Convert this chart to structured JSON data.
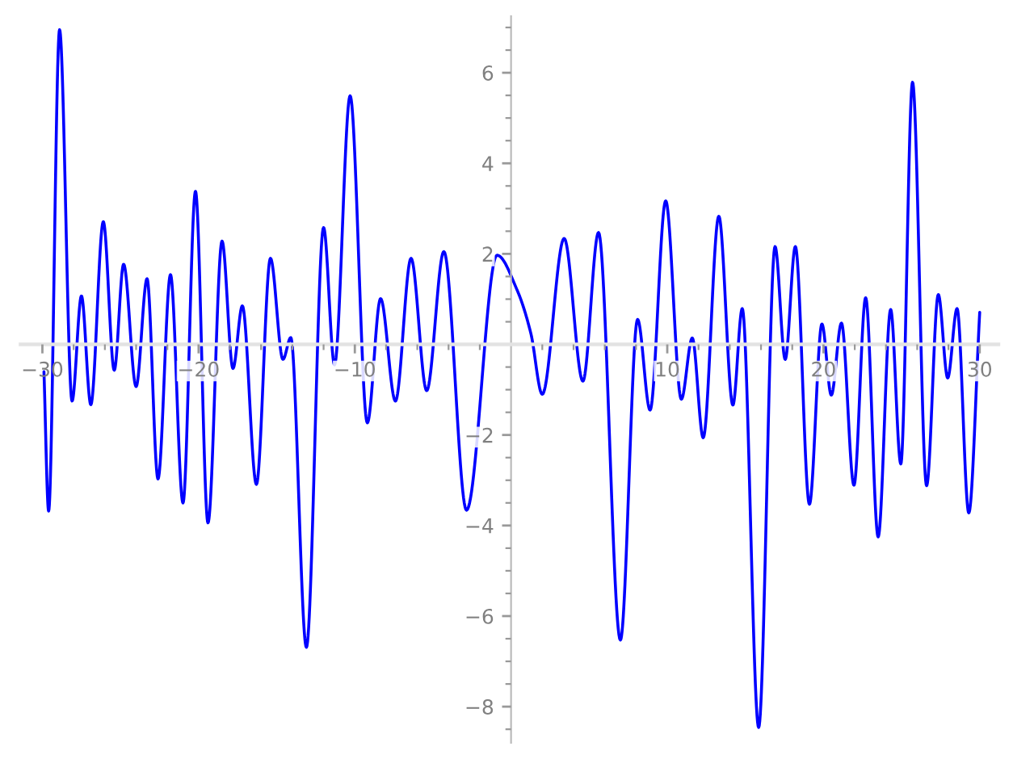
{
  "chart_data": {
    "type": "line",
    "x": [
      -29.9,
      -29.6,
      -28.9,
      -28.1,
      -27.5,
      -26.9,
      -26.1,
      -25.4,
      -24.8,
      -24.0,
      -23.3,
      -22.6,
      -21.8,
      -21.0,
      -20.2,
      -19.4,
      -18.5,
      -17.8,
      -17.2,
      -16.3,
      -15.4,
      -14.6,
      -14.1,
      -13.1,
      -12.0,
      -11.3,
      -10.3,
      -9.2,
      -8.35,
      -7.4,
      -6.4,
      -5.4,
      -4.3,
      -2.85,
      -0.9,
      0.4,
      1.27,
      2.0,
      3.4,
      4.6,
      5.6,
      7.0,
      8.1,
      8.9,
      9.9,
      10.9,
      11.6,
      12.3,
      13.3,
      14.2,
      14.8,
      15.85,
      16.9,
      17.55,
      18.2,
      19.1,
      19.9,
      20.5,
      21.15,
      21.95,
      22.7,
      23.5,
      24.3,
      24.95,
      25.7,
      26.6,
      27.35,
      27.95,
      28.55,
      29.3,
      30.0
    ],
    "series": [
      {
        "color": "#0000ff",
        "values": [
          -0.6,
          -3.68,
          6.95,
          -1.25,
          1.07,
          -1.33,
          2.71,
          -0.57,
          1.77,
          -0.93,
          1.45,
          -2.97,
          1.54,
          -3.5,
          3.38,
          -3.94,
          2.28,
          -0.53,
          0.85,
          -3.09,
          1.9,
          -0.33,
          0.15,
          -6.69,
          2.58,
          -0.45,
          5.49,
          -1.73,
          1.01,
          -1.25,
          1.9,
          -1.02,
          2.05,
          -3.66,
          1.97,
          1.19,
          0.24,
          -1.1,
          2.34,
          -0.81,
          2.47,
          -6.53,
          0.55,
          -1.45,
          3.17,
          -1.21,
          0.14,
          -2.06,
          2.83,
          -1.34,
          0.79,
          -8.46,
          2.16,
          -0.33,
          2.16,
          -3.53,
          0.45,
          -1.12,
          0.47,
          -3.11,
          1.03,
          -4.25,
          0.77,
          -2.64,
          5.79,
          -3.12,
          1.1,
          -0.74,
          0.79,
          -3.72,
          0.71
        ]
      }
    ],
    "xlim": [
      -31.4,
      31.2
    ],
    "ylim": [
      -8.8,
      7.25
    ],
    "xticks": [
      {
        "value": -30,
        "label": "−30"
      },
      {
        "value": -28,
        "label": null
      },
      {
        "value": -26,
        "label": null
      },
      {
        "value": -24,
        "label": null
      },
      {
        "value": -22,
        "label": null
      },
      {
        "value": -20,
        "label": "−20"
      },
      {
        "value": -18,
        "label": null
      },
      {
        "value": -16,
        "label": null
      },
      {
        "value": -14,
        "label": null
      },
      {
        "value": -12,
        "label": null
      },
      {
        "value": -10,
        "label": "−10"
      },
      {
        "value": -8,
        "label": null
      },
      {
        "value": -6,
        "label": null
      },
      {
        "value": -4,
        "label": null
      },
      {
        "value": -2,
        "label": null
      },
      {
        "value": 2,
        "label": null
      },
      {
        "value": 4,
        "label": null
      },
      {
        "value": 6,
        "label": null
      },
      {
        "value": 8,
        "label": null
      },
      10,
      {
        "value": 12,
        "label": null
      },
      {
        "value": 14,
        "label": null
      },
      {
        "value": 16,
        "label": null
      },
      {
        "value": 18,
        "label": null
      },
      20,
      {
        "value": 22,
        "label": null
      },
      {
        "value": 24,
        "label": null
      },
      {
        "value": 26,
        "label": null
      },
      {
        "value": 28,
        "label": null
      },
      30
    ],
    "yticks": [
      {
        "value": -8.5,
        "label": null
      },
      {
        "value": -8,
        "label": "−8"
      },
      {
        "value": -7.5,
        "label": null
      },
      {
        "value": -7,
        "label": null
      },
      {
        "value": -6.5,
        "label": null
      },
      {
        "value": -6,
        "label": "−6"
      },
      {
        "value": -5.5,
        "label": null
      },
      {
        "value": -5,
        "label": null
      },
      {
        "value": -4.5,
        "label": null
      },
      {
        "value": -4,
        "label": "−4"
      },
      {
        "value": -3.5,
        "label": null
      },
      {
        "value": -3,
        "label": null
      },
      {
        "value": -2.5,
        "label": null
      },
      {
        "value": -2,
        "label": "−2"
      },
      {
        "value": -1.5,
        "label": null
      },
      {
        "value": -1,
        "label": null
      },
      {
        "value": -0.5,
        "label": null
      },
      {
        "value": 0.5,
        "label": null
      },
      {
        "value": 1,
        "label": null
      },
      {
        "value": 1.5,
        "label": null
      },
      2,
      {
        "value": 2.5,
        "label": null
      },
      {
        "value": 3,
        "label": null
      },
      {
        "value": 3.5,
        "label": null
      },
      4,
      {
        "value": 4.5,
        "label": null
      },
      {
        "value": 5,
        "label": null
      },
      {
        "value": 5.5,
        "label": null
      },
      6,
      {
        "value": 6.5,
        "label": null
      },
      {
        "value": 7,
        "label": null
      }
    ]
  }
}
